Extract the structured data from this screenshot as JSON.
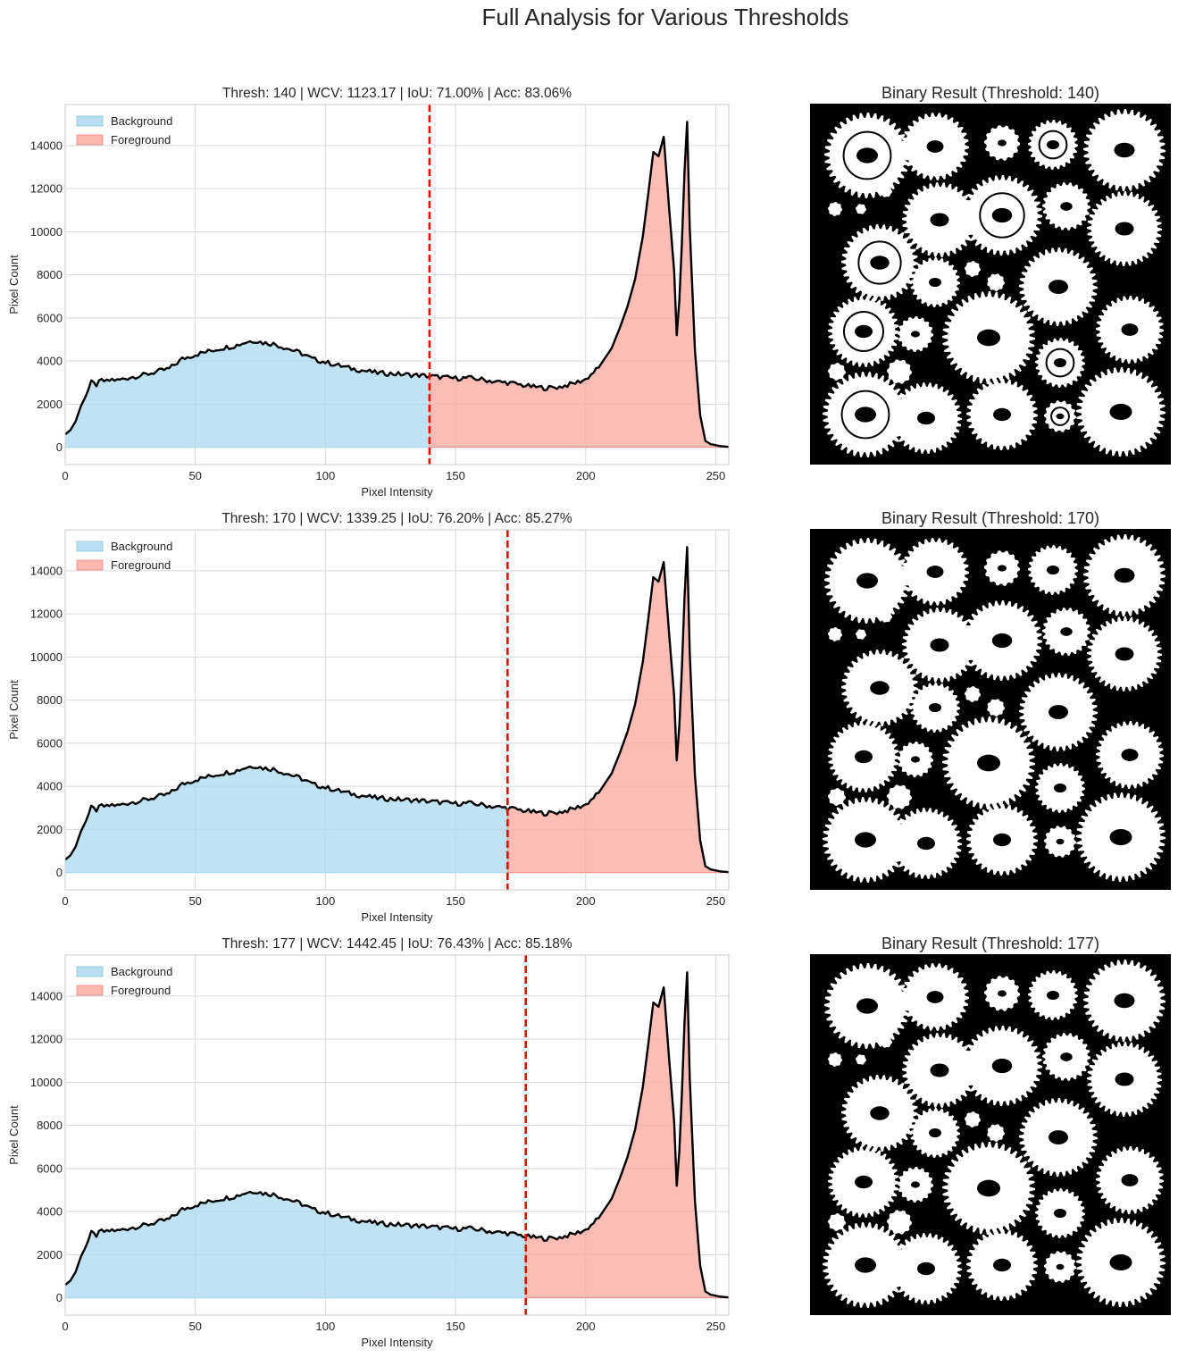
{
  "figure": {
    "title": "Full Analysis for Various Thresholds"
  },
  "chart_data": [
    {
      "type": "area",
      "title": "Thresh: 140 | WCV: 1123.17 | IoU: 71.00% | Acc: 83.06%",
      "xlabel": "Pixel Intensity",
      "ylabel": "Pixel Count",
      "threshold": 140,
      "legend": [
        "Background",
        "Foreground"
      ],
      "legend_position": "upper-left"
    },
    {
      "type": "area",
      "title": "Thresh: 170 | WCV: 1339.25 | IoU: 76.20% | Acc: 85.27%",
      "xlabel": "Pixel Intensity",
      "ylabel": "Pixel Count",
      "threshold": 170,
      "legend": [
        "Background",
        "Foreground"
      ],
      "legend_position": "upper-left"
    },
    {
      "type": "area",
      "title": "Thresh: 177 | WCV: 1442.45 | IoU: 76.43% | Acc: 85.18%",
      "xlabel": "Pixel Intensity",
      "ylabel": "Pixel Count",
      "threshold": 177,
      "legend": [
        "Background",
        "Foreground"
      ],
      "legend_position": "upper-left"
    }
  ],
  "shared": {
    "xlim": [
      0,
      255
    ],
    "ylim": [
      -800,
      15900
    ],
    "xticks": [
      0,
      50,
      100,
      150,
      200,
      250
    ],
    "yticks": [
      0,
      2000,
      4000,
      6000,
      8000,
      10000,
      12000,
      14000
    ],
    "grid": true,
    "histogram": {
      "x": [
        0,
        2,
        4,
        6,
        8,
        10,
        12,
        14,
        16,
        18,
        20,
        25,
        30,
        35,
        40,
        45,
        50,
        55,
        60,
        65,
        70,
        73,
        76,
        80,
        85,
        90,
        95,
        100,
        105,
        110,
        115,
        120,
        125,
        130,
        135,
        140,
        145,
        150,
        155,
        160,
        165,
        170,
        175,
        180,
        185,
        190,
        195,
        200,
        205,
        210,
        213,
        216,
        219,
        222,
        224,
        226,
        228,
        230,
        232,
        234,
        235,
        236,
        237,
        238,
        239,
        240,
        242,
        244,
        246,
        248,
        250,
        252,
        255
      ],
      "y": [
        600,
        800,
        1200,
        1900,
        2400,
        3000,
        2900,
        3100,
        3050,
        3150,
        3100,
        3250,
        3350,
        3500,
        3650,
        4100,
        4300,
        4450,
        4600,
        4700,
        4900,
        4950,
        4850,
        4800,
        4600,
        4400,
        4100,
        3950,
        3800,
        3650,
        3550,
        3450,
        3420,
        3380,
        3350,
        3300,
        3250,
        3200,
        3220,
        3150,
        3050,
        3000,
        2900,
        2800,
        2750,
        2800,
        2950,
        3150,
        3700,
        4600,
        5500,
        6500,
        7800,
        9800,
        11700,
        13700,
        13500,
        14400,
        11200,
        8200,
        5200,
        6800,
        9500,
        12800,
        15100,
        10200,
        4500,
        1500,
        300,
        150,
        100,
        50,
        20
      ]
    },
    "colors": {
      "background_fill": "#a8d8ee",
      "foreground_fill": "#fbaaa2",
      "line": "#000000",
      "threshold_line": "#ff0000"
    }
  },
  "binary_panels": [
    {
      "title": "Binary Result (Threshold: 140)"
    },
    {
      "title": "Binary Result (Threshold: 170)"
    },
    {
      "title": "Binary Result (Threshold: 177)"
    }
  ]
}
